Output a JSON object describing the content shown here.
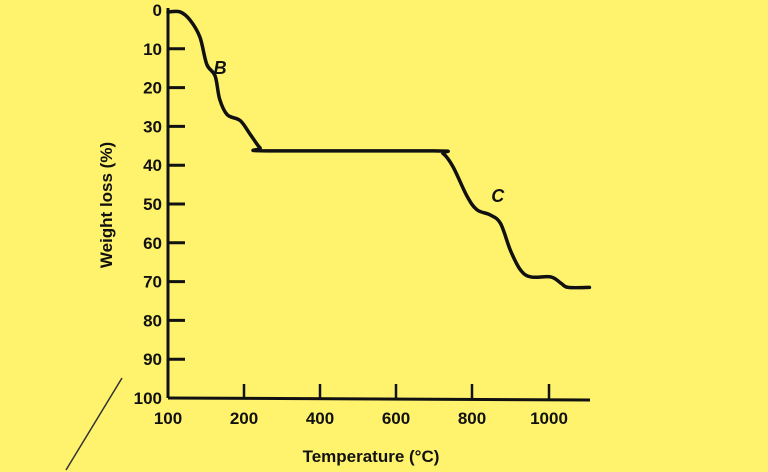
{
  "chart_data": {
    "type": "line",
    "title": "",
    "xlabel": "Temperature (°C)",
    "ylabel": "Weight loss (%)",
    "xlim": [
      100,
      1100
    ],
    "ylim": [
      0,
      100
    ],
    "y_inverted": true,
    "grid": false,
    "x_ticks": [
      100,
      200,
      400,
      600,
      800,
      1000
    ],
    "y_ticks": [
      0,
      10,
      20,
      30,
      40,
      50,
      60,
      70,
      80,
      90,
      100
    ],
    "series": [
      {
        "x": [
          100,
          116,
          129,
          142,
          151,
          162,
          168,
          178,
          195,
          216,
          242,
          261,
          697,
          724,
          750,
          787,
          813,
          847,
          874,
          900,
          926,
          953,
          1005,
          1032,
          1050,
          1105
        ],
        "y": [
          0.5,
          0.5,
          2.6,
          7,
          14,
          17,
          23,
          27,
          28.5,
          32,
          35.5,
          36.3,
          36.3,
          37,
          40.4,
          48,
          51.5,
          52.8,
          55,
          62,
          67,
          68.8,
          68.8,
          70.5,
          71.5,
          71.5
        ]
      }
    ],
    "annotations": [
      {
        "text": "B",
        "x": 160,
        "y": 15
      },
      {
        "text": "C",
        "x": 850,
        "y": 48
      }
    ],
    "colors": {
      "background": "#fff36e",
      "line": "#111111"
    }
  }
}
